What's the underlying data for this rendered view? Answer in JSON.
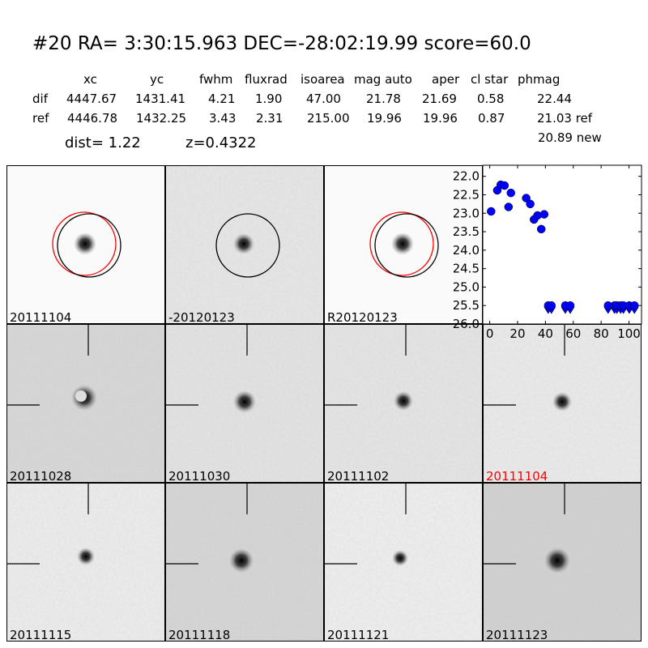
{
  "header": {
    "title": "#20   RA= 3:30:15.963 DEC=-28:02:19.99      score=60.0",
    "columns": [
      "xc",
      "yc",
      "fwhm",
      "fluxrad",
      "isoarea",
      "mag auto",
      "aper",
      "cl star",
      "phmag"
    ],
    "rows": [
      {
        "label": "dif",
        "values": [
          "4447.67",
          "1431.41",
          "4.21",
          "1.90",
          "47.00",
          "21.78",
          "21.69",
          "0.58",
          "22.44"
        ]
      },
      {
        "label": "ref",
        "values": [
          "4446.78",
          "1432.25",
          "3.43",
          "2.31",
          "215.00",
          "19.96",
          "19.96",
          "0.87",
          "21.03 ref"
        ]
      }
    ],
    "extra_phmag": "20.89 new",
    "dist": "dist=  1.22",
    "z": "z=0.4322"
  },
  "stamps": [
    {
      "label": "20111104",
      "color": "#000000",
      "circle": "black+red",
      "bg": "#fafafa"
    },
    {
      "label": "-20120123",
      "color": "#000000",
      "circle": "black",
      "bg": "#e8e8e8"
    },
    {
      "label": "R20120123",
      "color": "#000000",
      "circle": "black+red",
      "bg": "#fafafa"
    },
    null,
    {
      "label": "20111028",
      "color": "#000000",
      "crosshair": true,
      "bg": "#d8d8d8"
    },
    {
      "label": "20111030",
      "color": "#000000",
      "crosshair": true,
      "bg": "#e4e4e4"
    },
    {
      "label": "20111102",
      "color": "#000000",
      "crosshair": true,
      "bg": "#e6e6e6"
    },
    {
      "label": "20111104",
      "color": "#ff0000",
      "crosshair": true,
      "bg": "#ececec"
    },
    {
      "label": "20111115",
      "color": "#000000",
      "crosshair": true,
      "bg": "#eeeeee"
    },
    {
      "label": "20111118",
      "color": "#000000",
      "crosshair": true,
      "bg": "#d6d6d6"
    },
    {
      "label": "20111121",
      "color": "#000000",
      "crosshair": true,
      "bg": "#f0f0f0"
    },
    {
      "label": "20111123",
      "color": "#000000",
      "crosshair": true,
      "bg": "#d2d2d2"
    }
  ],
  "chart_data": {
    "type": "scatter",
    "xlim": [
      -5,
      109
    ],
    "ylim": [
      26.0,
      21.7
    ],
    "y_inverted": true,
    "xticks": [
      0,
      20,
      40,
      60,
      80,
      100
    ],
    "yticks": [
      "22.0",
      "22.5",
      "23.0",
      "23.5",
      "24.0",
      "24.5",
      "25.0",
      "25.5",
      "26.0"
    ],
    "marker_color": "#0000ff",
    "detections": {
      "x": [
        1,
        5.4,
        7.9,
        10.6,
        13.5,
        15.2,
        26.2,
        29.1,
        31.8,
        34.3,
        37,
        39.1
      ],
      "y": [
        22.95,
        22.38,
        22.23,
        22.25,
        22.83,
        22.45,
        22.59,
        22.75,
        23.17,
        23.06,
        23.43,
        23.03
      ]
    },
    "upper_limits": {
      "x": [
        42,
        44.3,
        54.3,
        57.8,
        85,
        89.6,
        91.3,
        94,
        96,
        100.2,
        103.9
      ],
      "y": [
        25.5,
        25.5,
        25.5,
        25.5,
        25.5,
        25.5,
        25.5,
        25.5,
        25.5,
        25.5,
        25.5
      ]
    }
  }
}
